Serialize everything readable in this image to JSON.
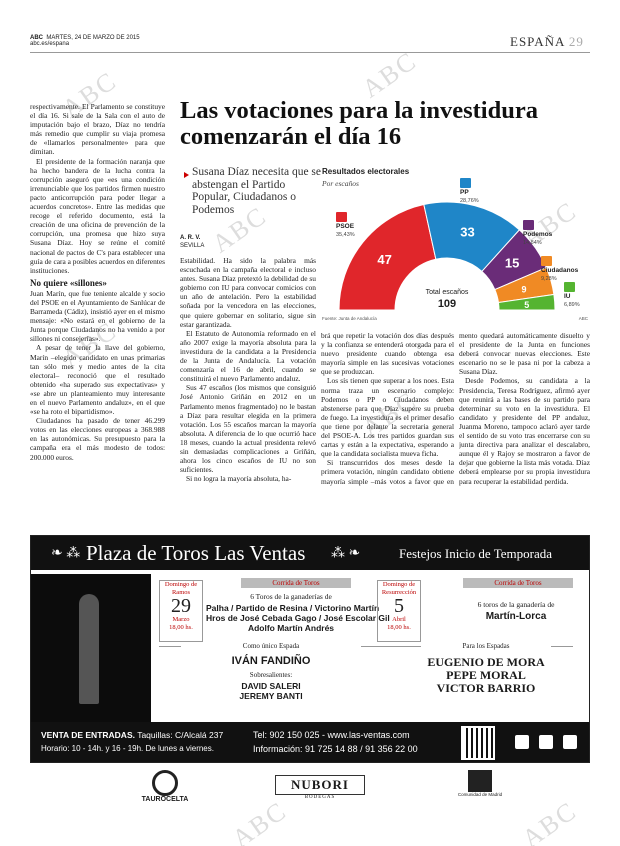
{
  "header": {
    "brand": "ABC",
    "date": "MARTES, 24 DE MARZO DE 2015",
    "url": "abc.es/espana",
    "section": "ESPAÑA",
    "page": "29"
  },
  "watermark": "ABC",
  "left_column": {
    "paragraphs": [
      "respectivamente. El Parlamento se constituye el día 16. Si sale de la Sala con el auto de imputación bajo el brazo, Díaz no tendría más remedio que cumplir su viaja promesa de «llamarlos personalmente» para que dimitan.",
      "El presidente de la formación naranja que ha hecho bandera de la lucha contra la corrupción aseguró que «es una condición irrenunciable que los partidos firmen nuestro pacto anticorrupción para poder llegar a acuerdos concretos». Entre las medidas que recoge el referido documento, está la creación de una oficina de prevención de la corrupción, una promesa que hizo suya Susana Díaz. Hoy se reúne el comité nacional de pactos de C's para establecer una guía de cara a posibles acuerdos en diferentes instituciones."
    ],
    "subhead": "No quiere «sillones»",
    "paragraphs_after": [
      "Juan Marín, que fue teniente alcalde y socio del PSOE en el Ayuntamiento de Sanlúcar de Barrameda (Cádiz), insistió ayer en el mismo mensaje: «No estará en el gobierno de la Junta porque Ciudadanos no ha venido a por sillones ni consejerías».",
      "A pesar de tener la llave del gobierno, Marín –elegido candidato en unas primarias tan sólo mes y medio antes de la cita electoral– reconoció que el resultado obtenido «ha superado sus expectativas» y «se abre un planteamiento muy interesante en el nuevo Parlamento andaluz», en el que «se ha roto el bipartidismo».",
      "Ciudadanos ha pasado de tener 46.299 votos en las elecciones europeas a 368.988 en las autonómicas. Su presupuesto para la campaña era el más modesto de todos: 200.000 euros."
    ]
  },
  "article": {
    "headline": "Las votaciones para la investidura comenzarán el día 16",
    "subtitle": "Susana Díaz necesita que se abstengan el Partido Popular, Ciudadanos o Podemos",
    "byline_author": "A. R. V.",
    "byline_place": "SEVILLA",
    "columns": [
      [
        "Estabilidad. Ha sido la palabra más escuchada en la campaña electoral e incluso antes. Susana Díaz pretextó la debilidad de su gobierno con IU para convocar comicios con un año de antelación. Pero la estabilidad soñada por la vencedora en las elecciones, que quiere gobernar en solitario, sigue sin estar garantizada.",
        "El Estatuto de Autonomía reformado en el año 2007 exige la mayoría absoluta para la investidura de la candidata a la Presidencia de la Junta de Andalucía. La votación comenzaría el 16 de abril, cuando se constituirá el nuevo Parlamento andaluz.",
        "Sus 47 escaños (los mismos que consiguió José Antonio Griñán en 2012 en un Parlamento menos fragmentado) no le bastan a Díaz para resultar elegida en la primera votación. Los 55 escaños marcan la mayoría absoluta. A diferencia de lo que ocurrió hace 18 meses, cuando la actual presidenta relevó sin demasiadas complicaciones a Griñán, ahora los cinco escaños de IU no son suficientes.",
        "Si no logra la mayoría absoluta, ha-"
      ],
      [
        "brá que repetir la votación dos días después y la confianza se entenderá otorgada para el nuevo presidente cuando obtenga esa mayoría simple en las sucesivas votaciones que se produzcan.",
        "Los sís tienen que superar a los noes. Esta norma traza un escenario complejo: Podemos o PP o Ciudadanos deben abstenerse para que Díaz supere su prueba de fuego. La investidura es el primer desafío que tiene por delante la secretaria general del PSOE-A. Los tres partidos guardan sus cartas y están a la expectativa, esperando a que la candidata socialista mueva ficha.",
        "Si transcurridos dos meses desde la primera votación, ningún candidato obtiene mayoría simple –más votos a favor que en contra–, el Parla-"
      ],
      [
        "mento quedará automáticamente disuelto y el presidente de la Junta en funciones deberá convocar nuevas elecciones. Este escenario no se le pasa ni por la cabeza a Susana Díaz.",
        "Desde Podemos, su candidata a la Presidencia, Teresa Rodríguez, afirmó ayer que reunirá a las bases de su partido para determinar su voto en la investidura. El candidato y presidente del PP andaluz, Juanma Moreno, tampoco aclaró ayer tarde el sentido de su voto tras encerrarse con su junta directiva para analizar el descalabro, aunque él y Rajoy se mostraron a favor de dejar que gobierne la lista más votada. Díaz deberá emplearse por su propia investidura para recuperar la estabilidad perdida."
      ]
    ]
  },
  "chart": {
    "type": "half-donut",
    "title": "Resultados electorales",
    "subtitle": "Por escaños",
    "total_label": "Total escaños",
    "total": 109,
    "source": "Fuente: Junta de Andalucía",
    "credit": "ABC",
    "series": [
      {
        "name": "PSOE",
        "color": "#e0262b",
        "seats": 47,
        "share": {
          "value": 35.43,
          "label": "35,43%"
        }
      },
      {
        "name": "PP",
        "color": "#1f86c8",
        "seats": 33,
        "share": {
          "value": 28.76,
          "label": "28,76%"
        }
      },
      {
        "name": "Podemos",
        "color": "#6a2c78",
        "seats": 15,
        "share": {
          "value": 14.84,
          "label": "14,84%"
        }
      },
      {
        "name": "Ciudadanos",
        "color": "#f08a24",
        "seats": 9,
        "share": {
          "value": 9.28,
          "label": "9,28%"
        }
      },
      {
        "name": "IU",
        "color": "#55b431",
        "seats": 5,
        "share": {
          "value": 6.89,
          "label": "6,89%"
        }
      }
    ]
  },
  "ad": {
    "title": "Plaza de Toros Las Ventas",
    "tagline": "Festejos Inicio de Temporada",
    "event1": {
      "day_name": "Domingo de Ramos",
      "day": "29",
      "month": "Marzo",
      "time": "18,00 hs.",
      "kind": "Corrida de Toros",
      "intro": "6 Toros de la ganaderías de",
      "ranches": [
        "Palha / Partido de Resina / Victorino Martín",
        "Hros de José Cebada Gago / José Escolar Gil",
        "Adolfo Martín Andrés"
      ],
      "role": "Como único Espada",
      "bullfighter": "IVÁN FANDIÑO",
      "substitutes_label": "Sobresalientes:",
      "substitutes": [
        "DAVID SALERI",
        "JEREMY BANTI"
      ]
    },
    "event2": {
      "day_name": "Domingo de Resurrección",
      "day": "5",
      "month": "Abril",
      "time": "18,00 hs.",
      "kind": "Corrida de Toros",
      "intro": "6 toros de la ganadería de",
      "ranch": "Martín-Lorca",
      "role": "Para los Espadas",
      "bullfighters": [
        "EUGENIO DE MORA",
        "PEPE MORAL",
        "VICTOR BARRIO"
      ]
    },
    "tickets": "VENTA DE ENTRADAS.",
    "box_office": "Taquillas: C/Alcalá 237",
    "hours": "Horario: 10 - 14h. y 16 - 19h. De lunes a viernes.",
    "phone": "Tel: 902 150 025 - www.las-ventas.com",
    "info": "Información: 91 725 14 88 / 91 356 22 00"
  },
  "sponsors": {
    "taurocelta": "TAUROCELTA",
    "nubori": "NUBORI",
    "nubori_sub": "BODEGAS",
    "madrid": "Comunidad de Madrid"
  }
}
